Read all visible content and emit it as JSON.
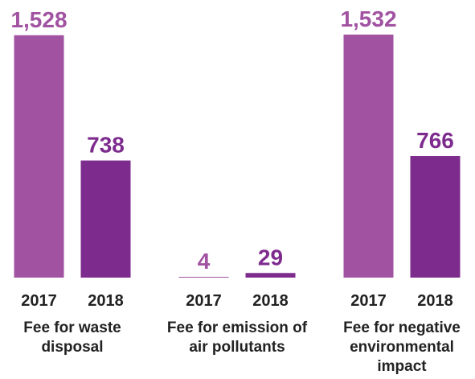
{
  "chart_data": {
    "type": "bar",
    "categories": [
      "Fee for waste disposal",
      "Fee for emission of air pollutants",
      "Fee for negative environmental impact"
    ],
    "series": [
      {
        "name": "2017",
        "color": "#a152a1",
        "values": [
          1528,
          4,
          1532
        ],
        "value_labels": [
          "1,528",
          "4",
          "1,532"
        ]
      },
      {
        "name": "2018",
        "color": "#7e2b8e",
        "values": [
          738,
          29,
          766
        ],
        "value_labels": [
          "738",
          "29",
          "766"
        ]
      }
    ]
  }
}
